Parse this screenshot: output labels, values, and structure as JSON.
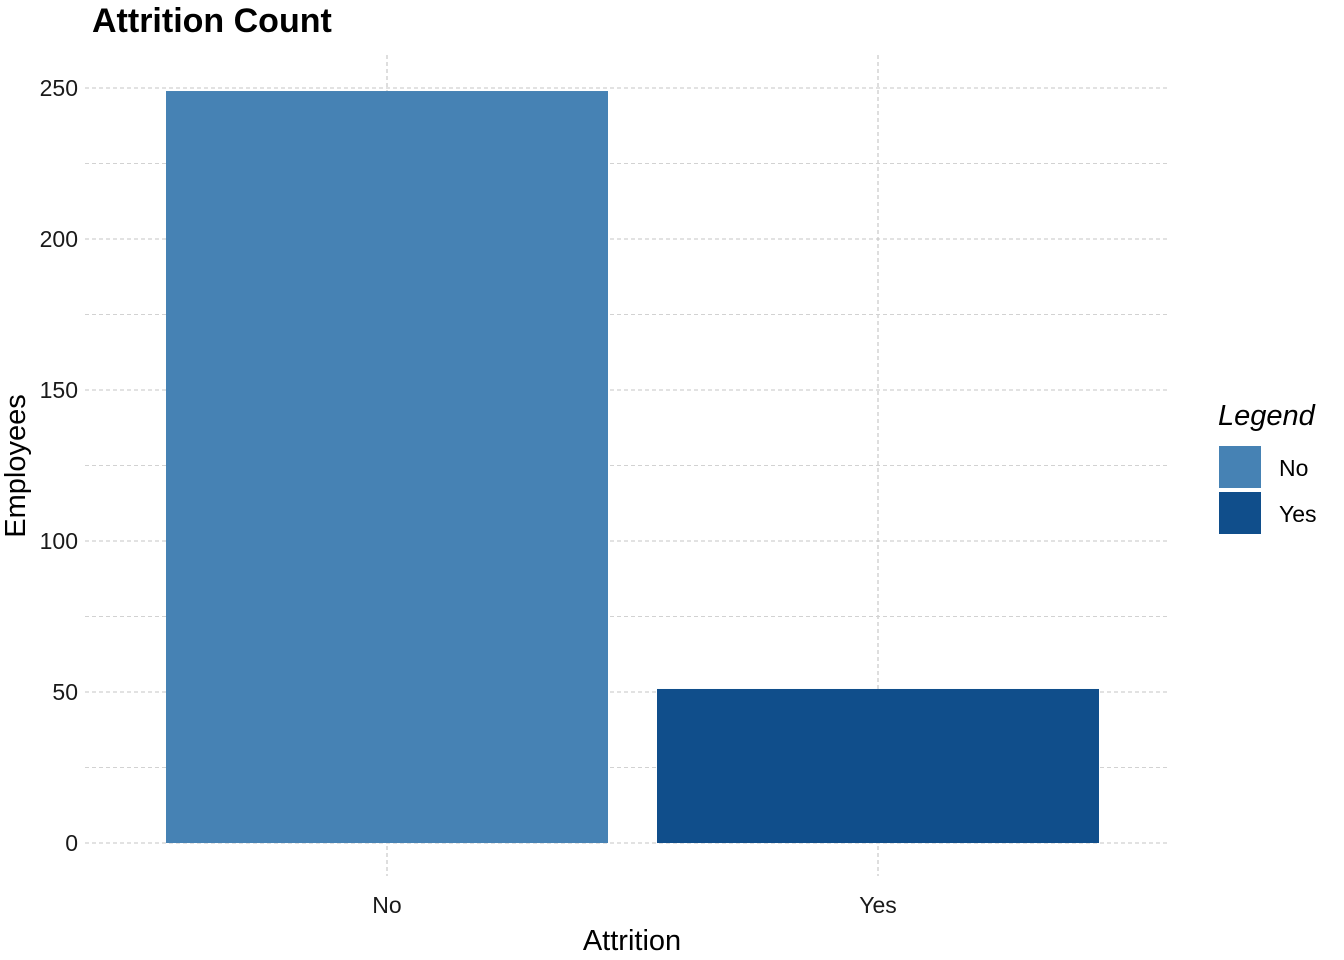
{
  "chart_data": {
    "type": "bar",
    "title": "Attrition Count",
    "xlabel": "Attrition",
    "ylabel": "Employees",
    "categories": [
      "No",
      "Yes"
    ],
    "values": [
      249,
      51
    ],
    "colors": [
      "#4682B4",
      "#104E8B"
    ],
    "ylim": [
      0,
      260
    ],
    "yticks": [
      0,
      50,
      100,
      150,
      200,
      250
    ],
    "ytick_labels": [
      "0",
      "50",
      "100",
      "150",
      "200",
      "250"
    ],
    "grid": "dashed major and minor",
    "legend": {
      "title": "Legend",
      "placement": "right",
      "entries": [
        {
          "label": "No",
          "color": "#4682B4"
        },
        {
          "label": "Yes",
          "color": "#104E8B"
        }
      ]
    }
  }
}
